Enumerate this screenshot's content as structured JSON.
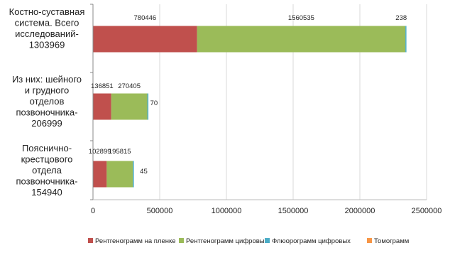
{
  "chart_data": {
    "type": "bar",
    "orientation": "horizontal",
    "stacked": true,
    "categories": [
      "Костно-суставная система. Всего исследований-1303969",
      "Из них: шейного и грудного отделов позвоночника-206999",
      "Пояснично-крестцового отдела позвоночника-154940"
    ],
    "category_lines": [
      [
        "Костно-суставная",
        "система. Всего",
        "исследований-",
        "1303969"
      ],
      [
        "Из них: шейного",
        "и грудного",
        "отделов",
        "позвоночника-",
        "206999"
      ],
      [
        "Пояснично-",
        "крестцового",
        "отдела",
        "позвоночника-",
        "154940"
      ]
    ],
    "series": [
      {
        "name": "Рентгенограмм на пленке",
        "color": "#c0504d",
        "values": [
          780446,
          136851,
          102899
        ]
      },
      {
        "name": "Рентгенограмм цифровых",
        "color": "#9bbb59",
        "values": [
          1560535,
          270405,
          195815
        ]
      },
      {
        "name": "Флюорограмм цифровых",
        "color": "#4bacc6",
        "values": [
          238,
          70,
          45
        ]
      },
      {
        "name": "Томограмм",
        "color": "#f79646",
        "values": [
          0,
          0,
          0
        ]
      }
    ],
    "data_labels": [
      {
        "category": 0,
        "series": 0,
        "text": "780446"
      },
      {
        "category": 0,
        "series": 1,
        "text": "1560535"
      },
      {
        "category": 0,
        "series": 2,
        "text": "238"
      },
      {
        "category": 1,
        "series": 0,
        "text": "136851"
      },
      {
        "category": 1,
        "series": 1,
        "text": "270405"
      },
      {
        "category": 1,
        "series": 2,
        "text": "70"
      },
      {
        "category": 2,
        "series": 0,
        "text": "102899"
      },
      {
        "category": 2,
        "series": 1,
        "text": "195815"
      },
      {
        "category": 2,
        "series": 2,
        "text": "45"
      }
    ],
    "xlim": [
      0,
      2500000
    ],
    "xticks": [
      0,
      500000,
      1000000,
      1500000,
      2000000,
      2500000
    ],
    "xtick_labels": [
      "0",
      "500000",
      "1000000",
      "1500000",
      "2000000",
      "2500000"
    ],
    "grid": "vertical",
    "legend_position": "bottom",
    "title": "",
    "xlabel": "",
    "ylabel": ""
  }
}
